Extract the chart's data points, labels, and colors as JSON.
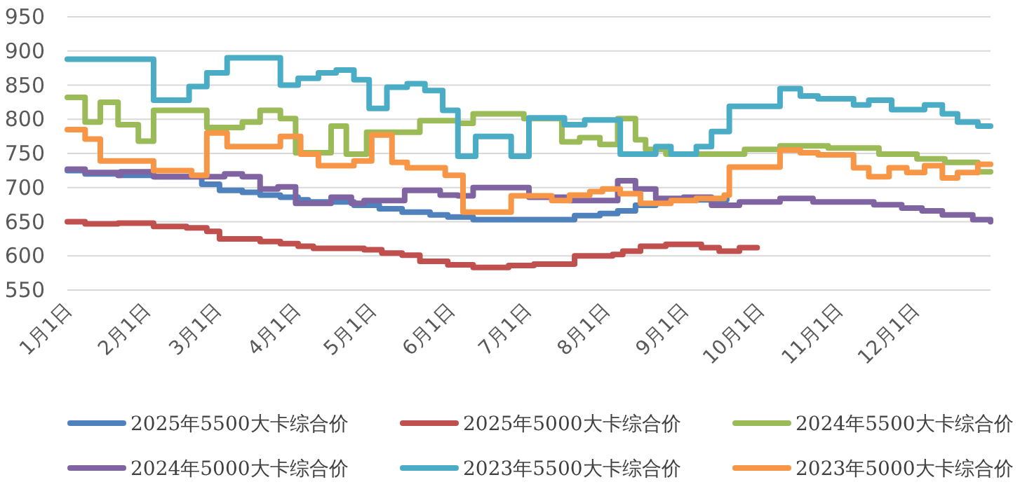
{
  "chart_data": {
    "type": "step",
    "grid": "y",
    "legend": "bottom",
    "ylim": [
      550,
      950
    ],
    "yticks": [
      550,
      600,
      650,
      700,
      750,
      800,
      850,
      900,
      950
    ],
    "xlim": [
      "--01-01",
      "--12-31"
    ],
    "xticks": [
      {
        "value": "--01-01",
        "label": "1月1日"
      },
      {
        "value": "--02-01",
        "label": "2月1日"
      },
      {
        "value": "--03-01",
        "label": "3月1日"
      },
      {
        "value": "--04-01",
        "label": "4月1日"
      },
      {
        "value": "--05-01",
        "label": "5月1日"
      },
      {
        "value": "--06-01",
        "label": "6月1日"
      },
      {
        "value": "--07-01",
        "label": "7月1日"
      },
      {
        "value": "--08-01",
        "label": "8月1日"
      },
      {
        "value": "--09-01",
        "label": "9月1日"
      },
      {
        "value": "--10-01",
        "label": "10月1日"
      },
      {
        "value": "--11-01",
        "label": "11月1日"
      },
      {
        "value": "--12-01",
        "label": "12月1日"
      }
    ],
    "series": [
      {
        "name": "2025年5500大卡综合价",
        "color": "#4f81bd",
        "x": [
          "--01-01",
          "--01-08",
          "--01-21",
          "--02-04",
          "--02-23",
          "--03-02",
          "--03-11",
          "--03-18",
          "--03-26",
          "--04-02",
          "--04-06",
          "--04-24",
          "--05-04",
          "--05-13",
          "--05-24",
          "--05-31",
          "--06-10",
          "--07-20",
          "--07-30",
          "--08-06",
          "--08-13",
          "--08-21",
          "--08-27",
          "--09-18"
        ],
        "values": [
          725,
          720,
          718,
          716,
          705,
          696,
          693,
          689,
          686,
          682,
          679,
          674,
          669,
          664,
          660,
          657,
          653,
          659,
          662,
          666,
          674,
          679,
          682,
          684
        ]
      },
      {
        "name": "2025年5000大卡综合价",
        "color": "#c0504d",
        "x": [
          "--01-01",
          "--01-08",
          "--01-21",
          "--02-04",
          "--02-17",
          "--02-25",
          "--03-02",
          "--03-18",
          "--03-26",
          "--04-02",
          "--04-08",
          "--04-28",
          "--05-05",
          "--05-13",
          "--05-20",
          "--05-31",
          "--06-10",
          "--06-24",
          "--07-04",
          "--07-20",
          "--08-04",
          "--08-08",
          "--08-15",
          "--08-25",
          "--09-08",
          "--09-15",
          "--09-23",
          "--09-30"
        ],
        "values": [
          650,
          647,
          648,
          643,
          641,
          636,
          625,
          621,
          618,
          614,
          611,
          609,
          604,
          601,
          592,
          587,
          583,
          586,
          588,
          600,
          602,
          607,
          614,
          617,
          612,
          607,
          612,
          612
        ]
      },
      {
        "name": "2024年5500大卡综合价",
        "color": "#9bbb59",
        "x": [
          "--01-01",
          "--01-08",
          "--01-14",
          "--01-21",
          "--01-29",
          "--02-04",
          "--02-25",
          "--03-11",
          "--03-18",
          "--03-26",
          "--04-01",
          "--04-15",
          "--04-21",
          "--04-29",
          "--05-20",
          "--06-04",
          "--06-10",
          "--06-30",
          "--07-15",
          "--07-22",
          "--07-30",
          "--08-06",
          "--08-13",
          "--08-17",
          "--08-25",
          "--09-25",
          "--10-09",
          "--10-28",
          "--11-17",
          "--12-02",
          "--12-13",
          "--12-26",
          "--12-31"
        ],
        "values": [
          832,
          796,
          825,
          792,
          768,
          813,
          788,
          796,
          813,
          801,
          751,
          790,
          749,
          781,
          798,
          794,
          808,
          801,
          767,
          773,
          763,
          801,
          770,
          756,
          749,
          756,
          761,
          758,
          749,
          742,
          737,
          723,
          723
        ]
      },
      {
        "name": "2024年5000大卡综合价",
        "color": "#8064a2",
        "x": [
          "--01-01",
          "--01-08",
          "--01-21",
          "--01-22",
          "--02-04",
          "--03-04",
          "--03-11",
          "--03-18",
          "--03-25",
          "--04-01",
          "--04-15",
          "--04-23",
          "--04-28",
          "--05-14",
          "--05-28",
          "--06-04",
          "--06-10",
          "--06-24",
          "--07-02",
          "--07-18",
          "--08-06",
          "--08-13",
          "--08-21",
          "--09-01",
          "--09-12",
          "--09-23",
          "--10-09",
          "--10-22",
          "--11-15",
          "--11-26",
          "--12-04",
          "--12-12",
          "--12-24",
          "--12-31"
        ],
        "values": [
          727,
          722,
          718,
          723,
          716,
          720,
          716,
          698,
          701,
          677,
          686,
          677,
          681,
          696,
          689,
          688,
          700,
          700,
          686,
          681,
          710,
          698,
          684,
          686,
          674,
          679,
          684,
          679,
          675,
          670,
          666,
          660,
          653,
          650
        ]
      },
      {
        "name": "2023年5500大卡综合价",
        "color": "#4bacc6",
        "x": [
          "--01-01",
          "--02-04",
          "--02-18",
          "--02-25",
          "--03-05",
          "--03-26",
          "--04-02",
          "--04-10",
          "--04-17",
          "--04-24",
          "--04-30",
          "--05-07",
          "--05-15",
          "--05-22",
          "--05-29",
          "--06-04",
          "--06-11",
          "--06-25",
          "--07-02",
          "--07-16",
          "--07-24",
          "--08-07",
          "--08-21",
          "--08-27",
          "--09-06",
          "--09-12",
          "--09-19",
          "--10-09",
          "--10-17",
          "--10-24",
          "--11-07",
          "--11-13",
          "--11-22",
          "--12-05",
          "--12-12",
          "--12-18",
          "--12-26",
          "--12-31"
        ],
        "values": [
          888,
          828,
          848,
          868,
          890,
          850,
          860,
          868,
          872,
          858,
          816,
          847,
          852,
          842,
          813,
          746,
          775,
          746,
          802,
          792,
          799,
          749,
          760,
          749,
          760,
          782,
          819,
          845,
          834,
          830,
          821,
          828,
          814,
          821,
          808,
          796,
          790,
          790
        ]
      },
      {
        "name": "2023年5000大卡综合价",
        "color": "#f79646",
        "x": [
          "--01-01",
          "--01-08",
          "--01-14",
          "--02-04",
          "--02-19",
          "--02-25",
          "--03-05",
          "--03-26",
          "--04-03",
          "--04-10",
          "--04-24",
          "--05-01",
          "--05-09",
          "--05-15",
          "--05-30",
          "--06-06",
          "--06-25",
          "--07-11",
          "--07-18",
          "--07-26",
          "--07-31",
          "--08-07",
          "--08-15",
          "--08-27",
          "--09-06",
          "--09-17",
          "--09-19",
          "--10-09",
          "--10-17",
          "--10-24",
          "--11-07",
          "--11-13",
          "--11-21",
          "--11-28",
          "--12-05",
          "--12-12",
          "--12-18",
          "--12-26",
          "--12-31"
        ],
        "values": [
          785,
          771,
          739,
          725,
          718,
          780,
          760,
          775,
          749,
          732,
          739,
          777,
          737,
          729,
          718,
          664,
          688,
          681,
          689,
          694,
          698,
          691,
          677,
          681,
          684,
          689,
          730,
          755,
          751,
          748,
          729,
          716,
          729,
          722,
          732,
          714,
          722,
          734,
          734
        ]
      }
    ]
  }
}
